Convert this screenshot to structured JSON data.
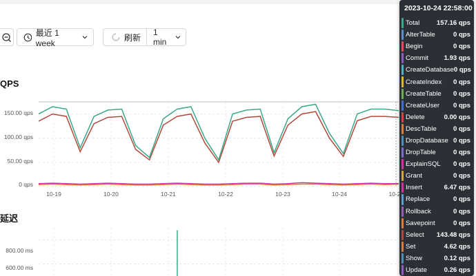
{
  "toolbar": {
    "range_label": "最近 1 week",
    "refresh_label": "刷新",
    "interval_label": "1 min"
  },
  "qps_panel": {
    "title": "QPS",
    "y_ticks": [
      "150.00 qps",
      "100.00 qps",
      "50.00 qps",
      "0 qps"
    ],
    "x_ticks": [
      "10-19",
      "10-20",
      "10-21",
      "10-22",
      "10-23",
      "10-24",
      "10-2"
    ]
  },
  "latency_panel": {
    "title": "延迟",
    "y_ticks": [
      "800.00 ms",
      "600.00 ms"
    ]
  },
  "chart_data": [
    {
      "type": "line",
      "title": "QPS",
      "ylim": [
        0,
        175
      ],
      "x": [
        "10-18 12:00",
        "10-18 18:00",
        "10-19 00:00",
        "10-19 06:00",
        "10-19 12:00",
        "10-19 18:00",
        "10-20 00:00",
        "10-20 06:00",
        "10-20 12:00",
        "10-20 18:00",
        "10-21 00:00",
        "10-21 06:00",
        "10-21 12:00",
        "10-21 18:00",
        "10-22 00:00",
        "10-22 06:00",
        "10-22 12:00",
        "10-22 18:00",
        "10-23 00:00",
        "10-23 06:00",
        "10-23 12:00",
        "10-23 18:00",
        "10-24 00:00",
        "10-24 06:00",
        "10-24 12:00",
        "10-24 18:00",
        "10-24 22:00"
      ],
      "series": [
        {
          "name": "Total",
          "color": "#3aa88a",
          "values": [
            150,
            165,
            160,
            80,
            145,
            158,
            160,
            85,
            60,
            140,
            160,
            165,
            100,
            55,
            150,
            158,
            160,
            70,
            140,
            165,
            170,
            110,
            68,
            150,
            160,
            160,
            157
          ]
        },
        {
          "name": "Select",
          "color": "#b4473a",
          "values": [
            135,
            150,
            145,
            72,
            130,
            143,
            145,
            77,
            55,
            127,
            145,
            150,
            90,
            50,
            135,
            143,
            145,
            63,
            127,
            150,
            155,
            100,
            62,
            136,
            145,
            145,
            143
          ]
        },
        {
          "name": "Insert",
          "color": "#c9379e",
          "values": [
            6,
            7,
            6,
            5,
            6,
            7,
            6,
            5,
            5,
            6,
            7,
            6,
            5,
            5,
            6,
            7,
            7,
            5,
            6,
            8,
            7,
            6,
            5,
            6,
            7,
            6,
            6
          ]
        },
        {
          "name": "Set",
          "color": "#e07b39",
          "values": [
            4,
            5,
            4,
            3,
            4,
            5,
            4,
            3,
            3,
            4,
            5,
            4,
            3,
            3,
            4,
            5,
            5,
            3,
            4,
            5,
            5,
            4,
            3,
            4,
            5,
            4,
            5
          ]
        }
      ]
    },
    {
      "type": "line",
      "title": "延迟",
      "ylim": [
        500,
        900
      ],
      "series": [
        {
          "name": "Total",
          "color": "#3aa88a",
          "values": [
            520,
            520,
            520,
            520,
            520,
            520,
            520,
            520,
            880,
            520,
            520,
            520,
            520,
            520,
            520,
            520,
            520,
            520,
            520,
            520,
            520,
            520,
            520,
            520,
            520,
            520,
            520
          ]
        }
      ]
    }
  ],
  "tooltip": {
    "timestamp": "2023-10-24 22:58:00",
    "rows": [
      {
        "name": "Total",
        "value": "157.16 qps",
        "color": "#3aa88a"
      },
      {
        "name": "AlterTable",
        "value": "0 qps",
        "color": "#5a8fd8"
      },
      {
        "name": "Begin",
        "value": "0 qps",
        "color": "#e64b5d"
      },
      {
        "name": "Commit",
        "value": "1.93 qps",
        "color": "#8f59c7"
      },
      {
        "name": "CreateDatabase",
        "value": "0 qps",
        "color": "#4ab3c9"
      },
      {
        "name": "CreateIndex",
        "value": "0 qps",
        "color": "#e3b43a"
      },
      {
        "name": "CreateTable",
        "value": "0 qps",
        "color": "#6ab04c"
      },
      {
        "name": "CreateUser",
        "value": "0 qps",
        "color": "#3f6fd1"
      },
      {
        "name": "Delete",
        "value": "0.00 qps",
        "color": "#c94a45"
      },
      {
        "name": "DescTable",
        "value": "0 qps",
        "color": "#e07b39"
      },
      {
        "name": "DropDatabase",
        "value": "0 qps",
        "color": "#4a90b8"
      },
      {
        "name": "DropTable",
        "value": "0 qps",
        "color": "#7a6fd0"
      },
      {
        "name": "ExplainSQL",
        "value": "0 qps",
        "color": "#c9379e"
      },
      {
        "name": "Grant",
        "value": "0 qps",
        "color": "#d9a23a"
      },
      {
        "name": "Insert",
        "value": "6.47 qps",
        "color": "#c9379e"
      },
      {
        "name": "Replace",
        "value": "0 qps",
        "color": "#5aa0d8"
      },
      {
        "name": "Rollback",
        "value": "0 qps",
        "color": "#9b59b6"
      },
      {
        "name": "Savepoint",
        "value": "0 qps",
        "color": "#e07b39"
      },
      {
        "name": "Select",
        "value": "143.48 qps",
        "color": "#b4473a"
      },
      {
        "name": "Set",
        "value": "4.62 qps",
        "color": "#e07b39"
      },
      {
        "name": "Show",
        "value": "0.12 qps",
        "color": "#4a90b8"
      },
      {
        "name": "Update",
        "value": "0.26 qps",
        "color": "#8f59c7"
      }
    ]
  }
}
